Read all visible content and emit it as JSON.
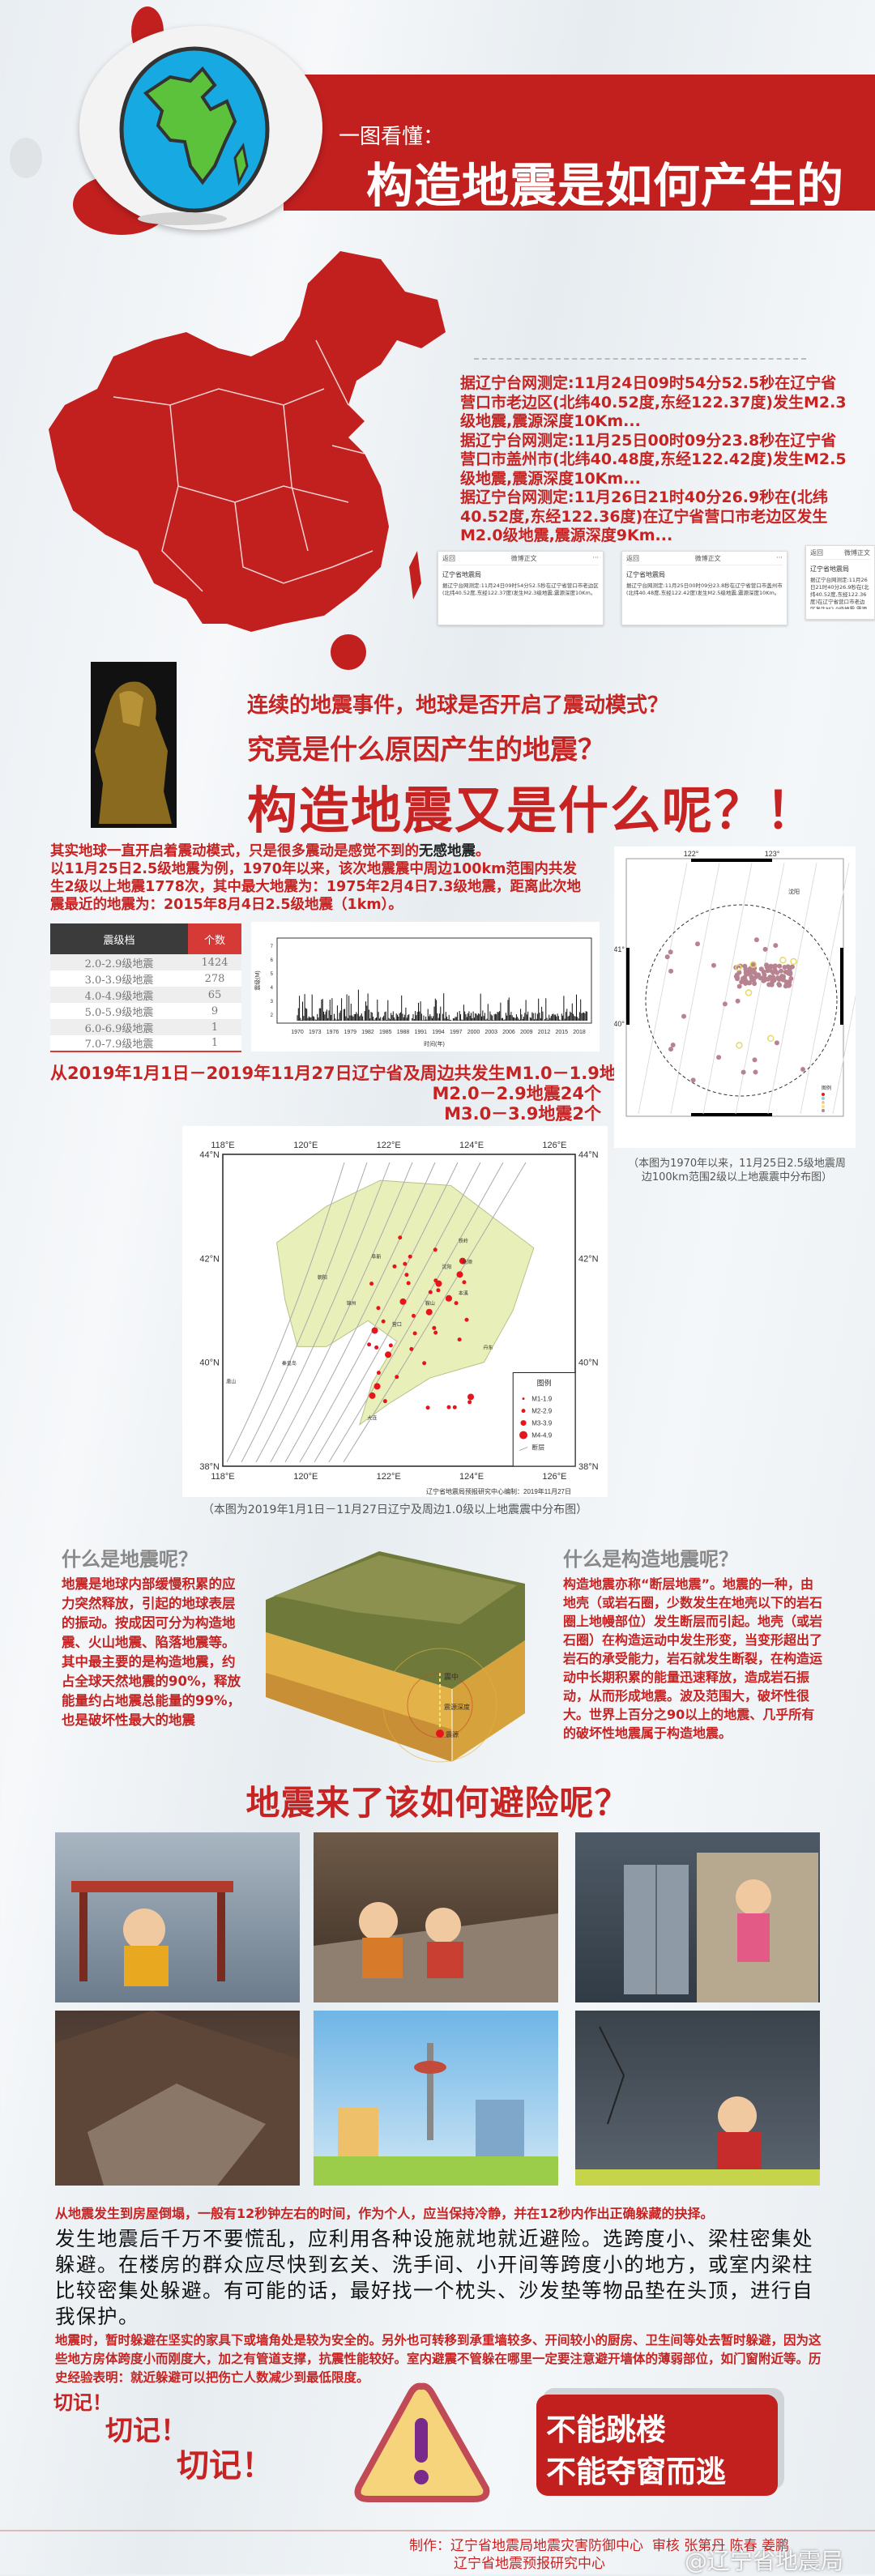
{
  "header": {
    "subtitle": "一图看懂：",
    "title": "构造地震是如何产生的"
  },
  "reports": [
    "据辽宁台网测定:11月24日09时54分52.5秒在辽宁省营口市老边区(北纬40.52度,东经122.37度)发生M2.3级地震,震源深度10Km...",
    "据辽宁台网测定:11月25日00时09分23.8秒在辽宁省营口市盖州市(北纬40.48度,东经122.42度)发生M2.5级地震,震源深度10Km...",
    "据辽宁台网测定:11月26日21时40分26.9秒在(北纬40.52度,东经122.36度)在辽宁省营口市老边区发生M2.0级地震,震源深度9Km..."
  ],
  "weibo": {
    "back": "返回",
    "header": "微博正文",
    "more": "···",
    "account": "辽宁省地震局",
    "posts": [
      "据辽宁台网测定:11月24日09时54分52.5秒在辽宁省营口市老边区(北纬40.52度,东经122.37度)发生M2.3级地震,震源深度10Km。",
      "据辽宁台网测定:11月25日00时09分23.8秒在辽宁省营口市盖州市(北纬40.48度,东经122.42度)发生M2.5级地震,震源深度10Km。",
      "据辽宁台网测定:11月26日21时40分26.9秒在(北纬40.52度,东经122.36度)在辽宁省营口市老边区发生M2.0级地震,震源深度9Km。"
    ]
  },
  "questions": {
    "q1": "连续的地震事件，地球是否开启了震动模式？",
    "q2": "究竟是什么原因产生的地震？",
    "q3": "构造地震又是什么呢？！"
  },
  "intro": {
    "line1_a": "其实地球一直开启着震动模式，只是很多震动是感觉不到的",
    "line1_b": "无感地震",
    "line1_c": "。",
    "rest": "以11月25日2.5级地震为例，1970年以来，该次地震震中周边100km范围内共发生2级以上地震1778次，其中最大地震为：1975年2月4日7.3级地震，距离此次地震最近的地震为：2015年8月4日2.5级地震（1km）。"
  },
  "magnitude_table": {
    "headers": [
      "震级档",
      "个数"
    ],
    "rows": [
      [
        "2.0-2.9级地震",
        "1424"
      ],
      [
        "3.0-3.9级地震",
        "278"
      ],
      [
        "4.0-4.9级地震",
        "65"
      ],
      [
        "5.0-5.9级地震",
        "9"
      ],
      [
        "6.0-6.9级地震",
        "1"
      ],
      [
        "7.0-7.9级地震",
        "1"
      ]
    ]
  },
  "histogram": {
    "xticks": [
      "1970",
      "1973",
      "1976",
      "1979",
      "1982",
      "1985",
      "1988",
      "1991",
      "1994",
      "1997",
      "2000",
      "2003",
      "2006",
      "2009",
      "2012",
      "2015",
      "2018"
    ],
    "xlabel": "时间(年)",
    "ylabel": "震级(M)",
    "yticks": [
      "2",
      "3",
      "4",
      "5",
      "6",
      "7"
    ]
  },
  "stats": {
    "line1": "从2019年1月1日－2019年11月27日辽宁省及周边共发生M1.0－1.9地震112个",
    "line2": "M2.0－2.9地震24个",
    "line3": "M3.0－3.9地震2个"
  },
  "map_2019": {
    "xticks": [
      "118°E",
      "120°E",
      "122°E",
      "124°E",
      "126°E"
    ],
    "yticks": [
      "44°N",
      "42°N",
      "40°N",
      "38°N"
    ],
    "legend_title": "图例",
    "legend": [
      "M1-1.9",
      "M2-2.9",
      "M3-3.9",
      "M4-4.9",
      "断层"
    ],
    "credit": "辽宁省地震局预报研究中心编制：2019年11月27日",
    "caption": "（本图为2019年1月1日－11月27日辽宁及周边1.0级以上地震震中分布图）",
    "cities": [
      "沈阳",
      "铁岭",
      "抚顺",
      "本溪",
      "丹东",
      "大连",
      "锦州",
      "营口",
      "鞍山",
      "秦皇岛",
      "唐山",
      "阜新",
      "朝阳"
    ]
  },
  "map_1970": {
    "xticks": [
      "122°",
      "123°"
    ],
    "yticks": [
      "41°",
      "40°"
    ],
    "city": "沈阳",
    "legend_title": "图例",
    "caption": "（本图为1970年以来，11月25日2.5级地震周边100km范围2级以上地震震中分布图）"
  },
  "what_quake": {
    "title": "什么是地震呢？",
    "body": "地震是地球内部缓慢积累的应力突然释放，引起的地球表层的振动。按成因可分为构造地震、火山地震、陷落地震等。其中最主要的是构造地震，约占全球天然地震的90%，释放能量约占地震总能量的99%，也是破坏性最大的地震"
  },
  "block_labels": {
    "epicenter": "震中",
    "depth": "震源深度",
    "focus": "震源"
  },
  "what_tectonic": {
    "title": "什么是构造地震呢？",
    "body": "构造地震亦称“断层地震”。地震的一种，由地壳（或岩石圈，少数发生在地壳以下的岩石圈上地幔部位）发生断层而引起。地壳（或岩石圈）在构造运动中发生形变，当变形超出了岩石的承受能力，岩石就发生断裂，在构造运动中长期积累的能量迅速释放，造成岩石振动，从而形成地震。波及范围大，破坏性很大。世界上百分之90以上的地震、几乎所有的破坏性地震属于构造地震。"
  },
  "avoid": {
    "title": "地震来了该如何避险呢？",
    "tip1": "从地震发生到房屋倒塌，一般有12秒钟左右的时间，作为个人，应当保持冷静，并在12秒内作出正确躲藏的抉择。",
    "tip2": "发生地震后千万不要慌乱，应利用各种设施就地就近避险。选跨度小、梁柱密集处躲避。在楼房的群众应尽快到玄关、洗手间、小开间等跨度小的地方，或室内梁柱比较密集处躲避。有可能的话，最好找一个枕头、沙发垫等物品垫在头顶，进行自我保护。",
    "tip3": "地震时，暂时躲避在坚实的家具下或墙角处是较为安全的。另外也可转移到承重墙较多、开间较小的厨房、卫生间等处去暂时躲避，因为这些地方房体跨度小而刚度大，加之有管道支撑，抗震性能较好。室内避震不管躲在哪里一定要注意避开墙体的薄弱部位，如门窗附近等。历史经验表明：就近躲避可以把伤亡人数减少到最低限度。"
  },
  "remember": {
    "r1": "切记！",
    "r2": "切记！",
    "r3": "切记！",
    "no1": "不能跳楼",
    "no2": "不能夺窗而逃"
  },
  "footer": {
    "line1": "制作：辽宁省地震局地震灾害防御中心",
    "line2": "辽宁省地震预报研究中心",
    "credits": "审核 张第丹 陈春 姜鹏",
    "watermark": "@辽宁省地震局"
  },
  "colors": {
    "brand_red": "#c1201f",
    "text_red": "#c62322",
    "map_land": "#e8efb8",
    "quake_dot": "#e8141b"
  }
}
